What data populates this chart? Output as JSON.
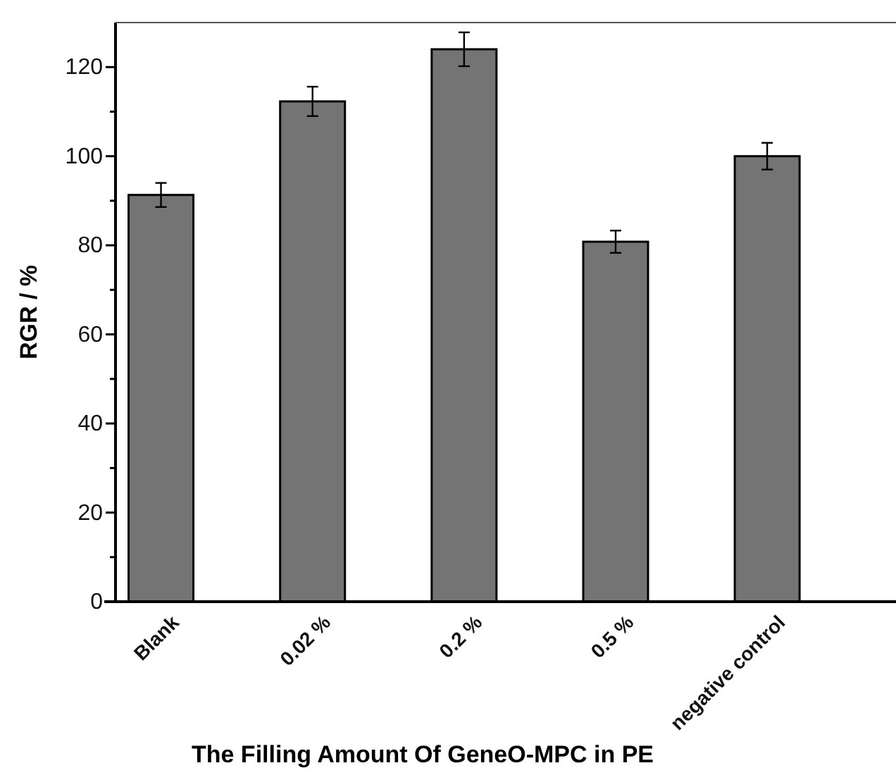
{
  "chart_data": {
    "type": "bar",
    "xlabel": "The Filling Amount Of GeneO-MPC in PE",
    "ylabel": "RGR / %",
    "categories": [
      "Blank",
      "0.02 %",
      "0.2 %",
      "0.5 %",
      "negative control"
    ],
    "values": [
      91.3,
      112.3,
      124,
      80.8,
      100
    ],
    "errors": [
      2.7,
      3.3,
      3.8,
      2.5,
      3
    ],
    "color": "#747474",
    "ylim": [
      0,
      130
    ],
    "yticks": [
      0,
      {
        "value": 10,
        "label": null
      },
      20,
      {
        "value": 30,
        "label": null
      },
      40,
      {
        "value": 50,
        "label": null
      },
      60,
      {
        "value": 70,
        "label": null
      },
      80,
      {
        "value": 90,
        "label": null
      },
      100,
      {
        "value": 110,
        "label": null
      },
      120
    ],
    "grid": false
  }
}
